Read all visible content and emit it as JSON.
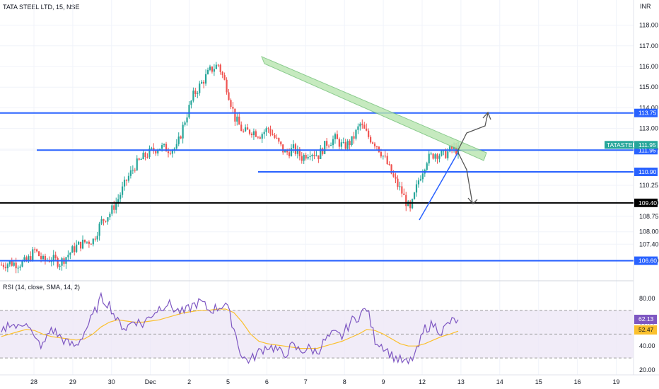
{
  "header": {
    "title": "TATA STEEL LTD, 15, NSE",
    "currency": "INR"
  },
  "rsi": {
    "title": "RSI (14, close, SMA, 14, 2)",
    "value": "62.13",
    "sma": "52.47",
    "levels": [
      30,
      50,
      70
    ]
  },
  "chart_data": [
    {
      "type": "candlestick",
      "title": "TATA STEEL LTD, 15, NSE",
      "ylabel": "INR",
      "ylim": [
        105.8,
        118.6
      ],
      "x_ticks": [
        "28",
        "29",
        "30",
        "Dec",
        "2",
        "5",
        "6",
        "7",
        "8",
        "9",
        "12",
        "13",
        "14",
        "15",
        "16",
        "19"
      ],
      "y_ticks": [
        "118.00",
        "117.00",
        "116.00",
        "115.00",
        "114.00",
        "113.00",
        "112.00",
        "111.95",
        "110.25",
        "109.40",
        "108.75",
        "108.00",
        "107.40",
        "106.60"
      ],
      "price_path": [
        106.4,
        106.5,
        106.45,
        106.55,
        107.1,
        106.6,
        106.7,
        106.5,
        106.9,
        107.3,
        107.5,
        107.6,
        108.5,
        108.9,
        109.6,
        110.5,
        111.2,
        111.6,
        111.9,
        112.1,
        112.0,
        112.05,
        113.4,
        114.6,
        115.2,
        115.8,
        116.1,
        115.0,
        113.5,
        112.8,
        112.9,
        112.7,
        113.0,
        112.4,
        111.8,
        112.0,
        111.6,
        111.9,
        111.7,
        112.3,
        112.5,
        112.1,
        112.4,
        113.2,
        112.6,
        112.2,
        111.5,
        110.6,
        109.9,
        109.0,
        110.5,
        111.5,
        111.8,
        111.7,
        112.0,
        111.95
      ],
      "last_price": "111.95",
      "symbol_tag": "TATASTEEL",
      "horizontal_levels": [
        {
          "value": "113.75",
          "color": "#2962ff"
        },
        {
          "value": "111.95",
          "color": "#2962ff"
        },
        {
          "value": "110.90",
          "color": "#2962ff"
        },
        {
          "value": "109.40",
          "color": "#000000"
        },
        {
          "value": "106.60",
          "color": "#2962ff"
        }
      ]
    },
    {
      "type": "line",
      "title": "RSI (14, close, SMA, 14, 2)",
      "ylim": [
        17,
        90
      ],
      "y_ticks": [
        "80.00",
        "60.00",
        "40.00",
        "20.00"
      ],
      "rsi": [
        50,
        60,
        55,
        62,
        45,
        40,
        55,
        48,
        42,
        40,
        52,
        65,
        80,
        75,
        60,
        55,
        62,
        58,
        66,
        72,
        76,
        70,
        68,
        74,
        77,
        70,
        72,
        76,
        55,
        30,
        28,
        35,
        40,
        38,
        32,
        40,
        36,
        38,
        35,
        45,
        50,
        48,
        60,
        65,
        72,
        45,
        40,
        32,
        28,
        25,
        35,
        55,
        58,
        52,
        60,
        62.13
      ],
      "rsi_sma": [
        48,
        50,
        52,
        54,
        53,
        50,
        48,
        47,
        46,
        45,
        46,
        50,
        56,
        60,
        62,
        61,
        60,
        60,
        61,
        62,
        64,
        66,
        68,
        69,
        70,
        70,
        71,
        71,
        68,
        60,
        50,
        44,
        42,
        41,
        40,
        39,
        38,
        38,
        38,
        40,
        42,
        44,
        47,
        50,
        54,
        53,
        50,
        46,
        42,
        40,
        40,
        42,
        45,
        48,
        50,
        52.47
      ]
    }
  ],
  "colors": {
    "up": "#26a69a",
    "down": "#ef5350",
    "blue": "#2962ff",
    "rsi": "#7e57c2",
    "sma": "#fbc02d",
    "channel_fill": "#b9e6b0",
    "channel_stroke": "#6fbf73"
  }
}
